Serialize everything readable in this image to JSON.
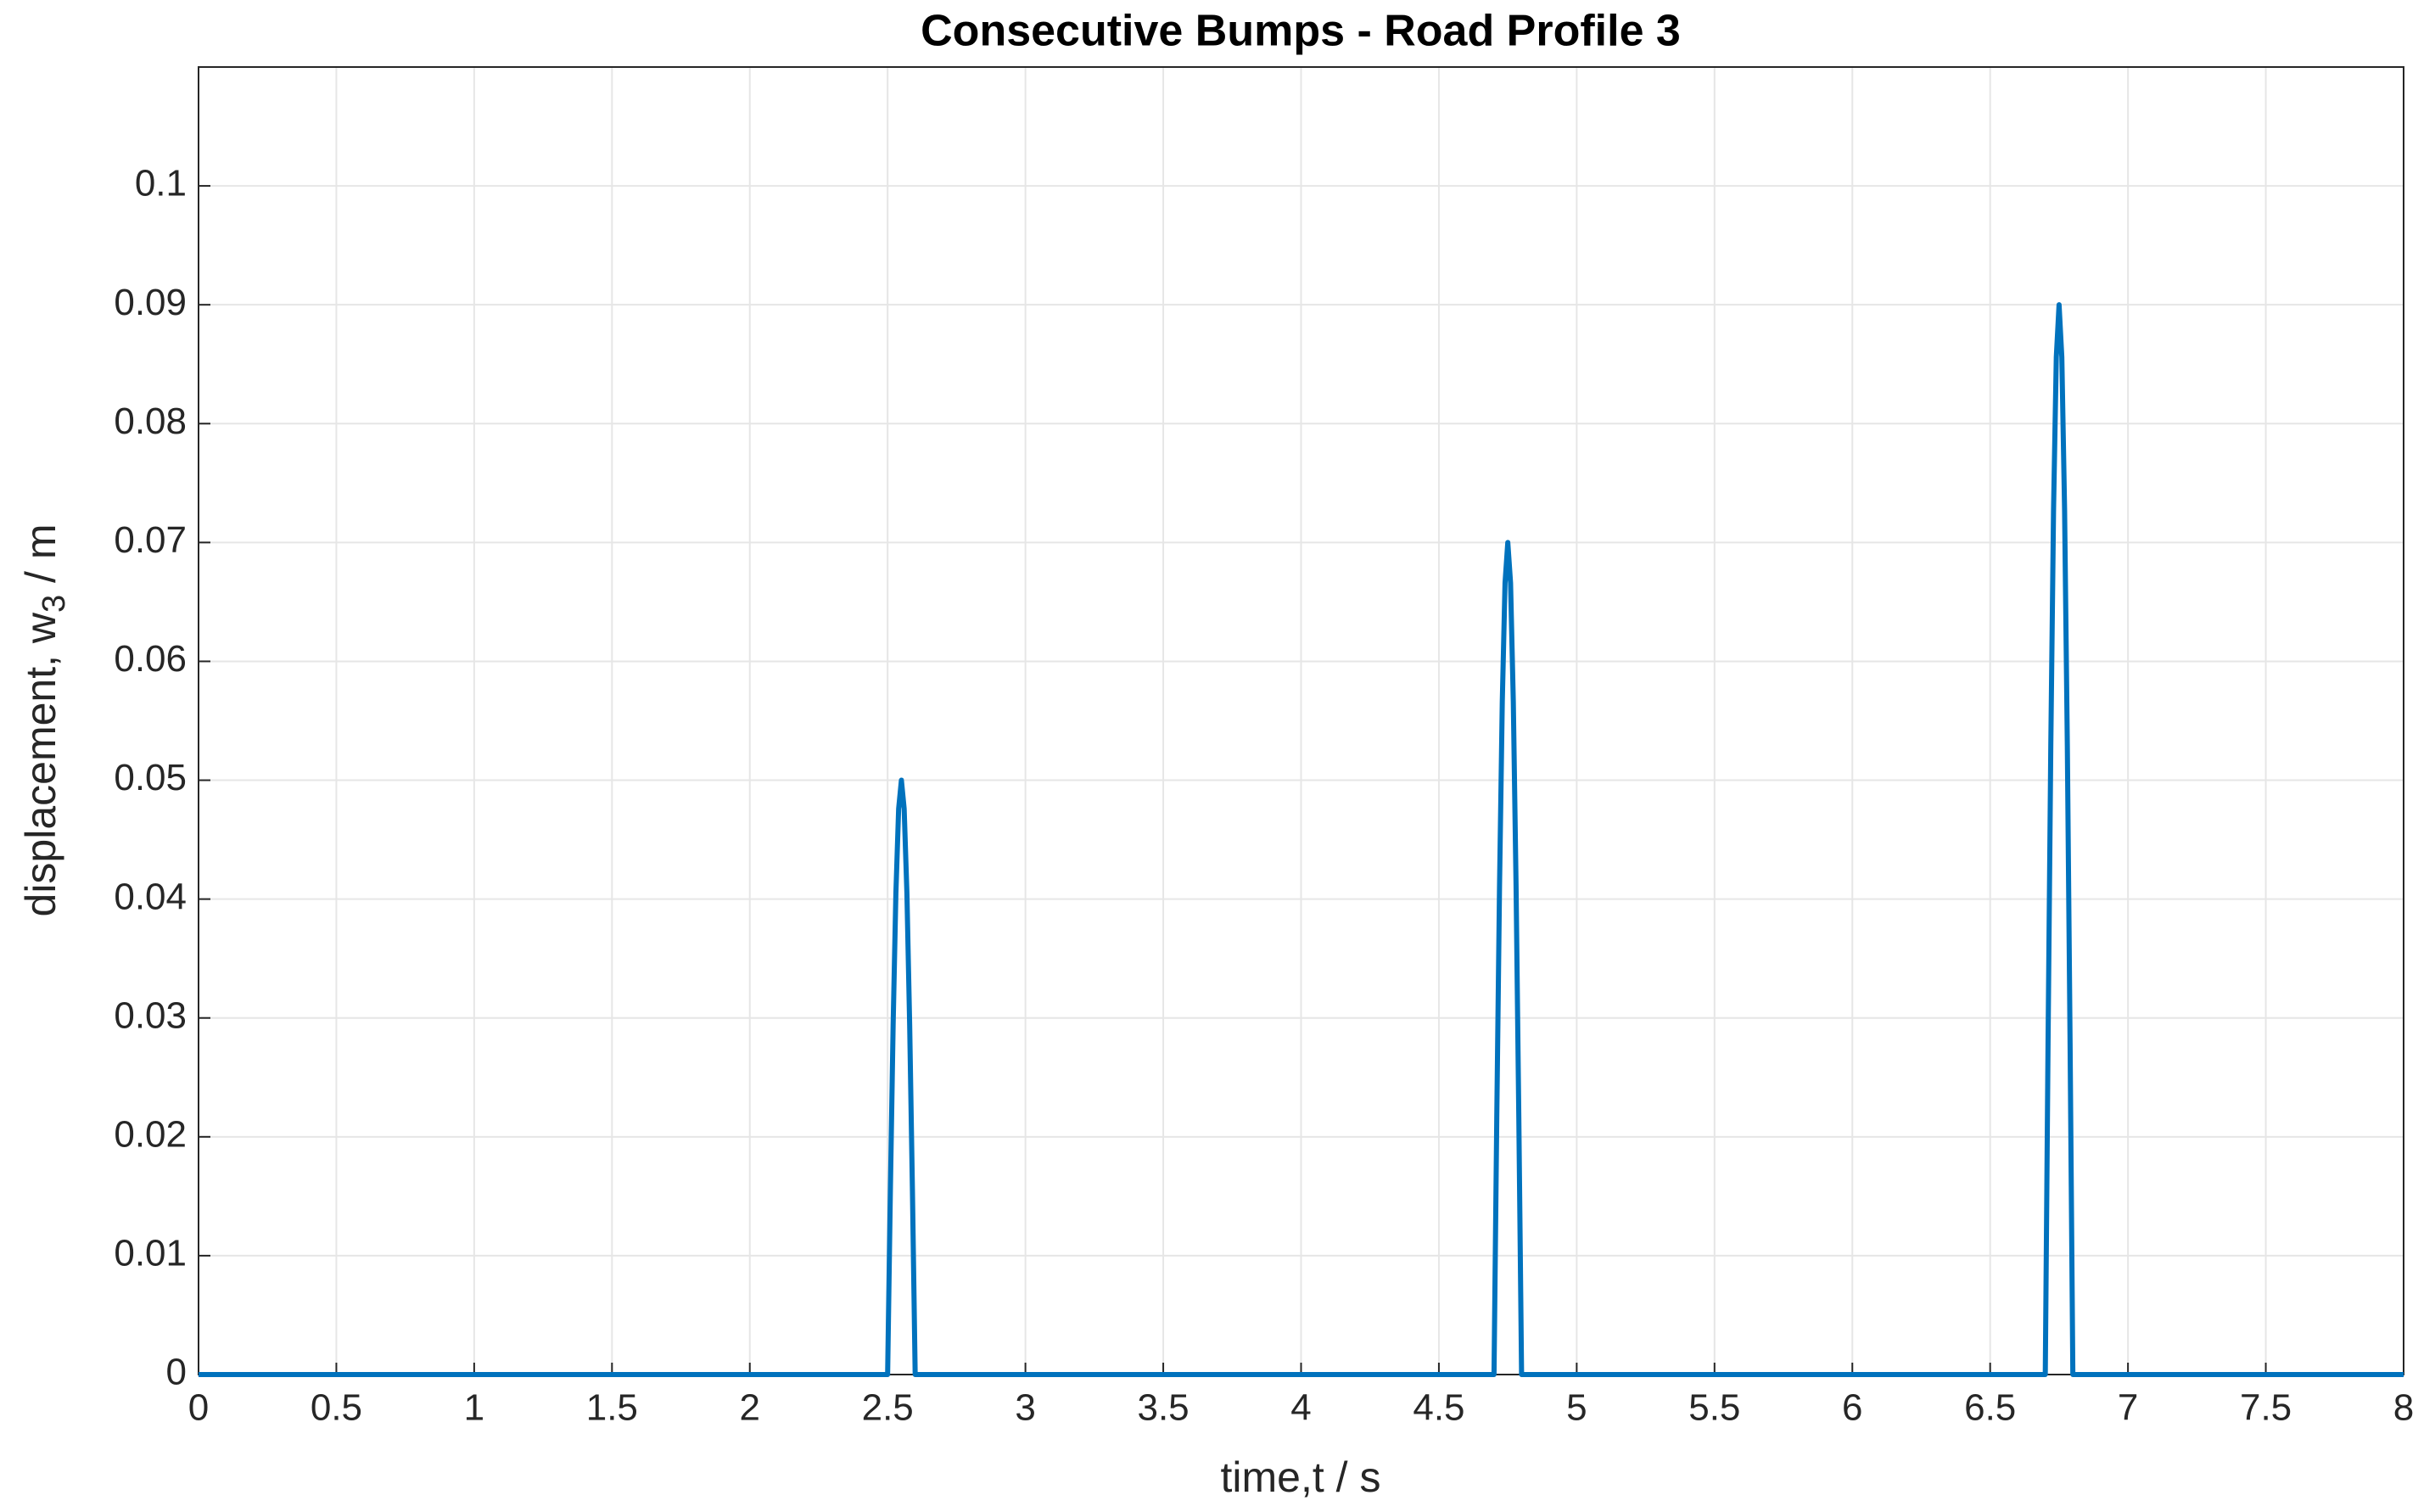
{
  "chart_data": {
    "type": "line",
    "title": "Consecutive Bumps - Road Profile 3",
    "xlabel": "time,t / s",
    "ylabel": [
      "displacement, w",
      "3",
      " / m"
    ],
    "x": [
      0,
      2.5,
      2.51,
      2.52,
      2.53,
      2.54,
      2.55,
      2.56,
      2.57,
      2.58,
      2.59,
      2.6,
      4.7,
      4.71,
      4.72,
      4.73,
      4.74,
      4.75,
      4.76,
      4.77,
      4.78,
      4.79,
      4.8,
      6.7,
      6.71,
      6.72,
      6.73,
      6.74,
      6.75,
      6.76,
      6.77,
      6.78,
      6.79,
      6.8,
      8
    ],
    "series": [
      {
        "color": "#0072bd",
        "values": [
          0,
          0,
          0.0155,
          0.0294,
          0.0405,
          0.0476,
          0.05,
          0.0476,
          0.0405,
          0.0294,
          0.0155,
          0,
          0,
          0.0216,
          0.0411,
          0.0566,
          0.0666,
          0.07,
          0.0666,
          0.0566,
          0.0411,
          0.0216,
          0,
          0,
          0.0278,
          0.0529,
          0.0728,
          0.0856,
          0.09,
          0.0856,
          0.0728,
          0.0529,
          0.0278,
          0,
          0
        ]
      }
    ],
    "xlim": [
      0,
      8
    ],
    "xticks": [
      0,
      0.5,
      1,
      1.5,
      2,
      2.5,
      3,
      3.5,
      4,
      4.5,
      5,
      5.5,
      6,
      6.5,
      7,
      7.5,
      8
    ],
    "ylim": [
      0,
      0.11
    ],
    "yticks": [
      0,
      0.01,
      0.02,
      0.03,
      0.04,
      0.05,
      0.06,
      0.07,
      0.08,
      0.09,
      0.1
    ],
    "grid": true
  }
}
